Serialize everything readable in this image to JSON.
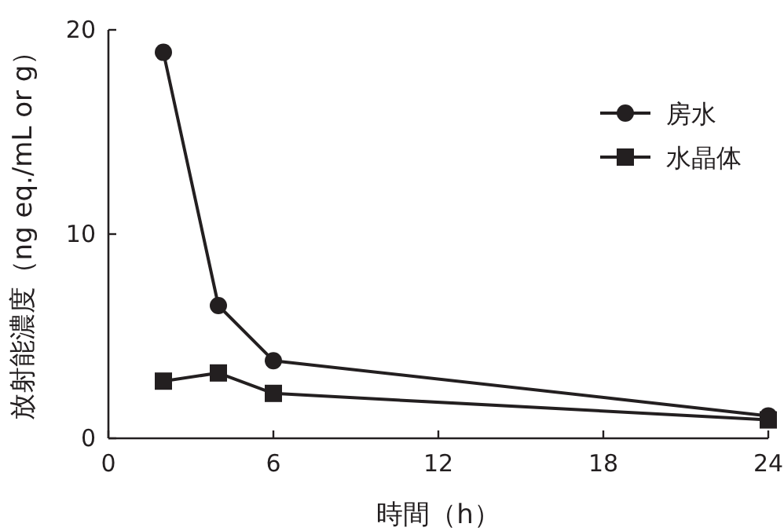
{
  "chart_data": {
    "type": "line",
    "xlabel": "時間（h）",
    "ylabel": "放射能濃度（ng eq./mL or g）",
    "x": [
      2,
      4,
      6,
      24
    ],
    "series": [
      {
        "name": "房水",
        "color": "#231f20",
        "marker": "circle",
        "values": [
          18.9,
          6.5,
          3.8,
          1.1
        ]
      },
      {
        "name": "水晶体",
        "color": "#231f20",
        "marker": "square",
        "values": [
          2.8,
          3.2,
          2.2,
          0.9
        ]
      }
    ],
    "xlim": [
      0,
      24
    ],
    "xticks": [
      0,
      6,
      12,
      18,
      24
    ],
    "ylim": [
      0,
      20
    ],
    "yticks": [
      0,
      10,
      20
    ],
    "legend": "top right",
    "grid": false
  }
}
